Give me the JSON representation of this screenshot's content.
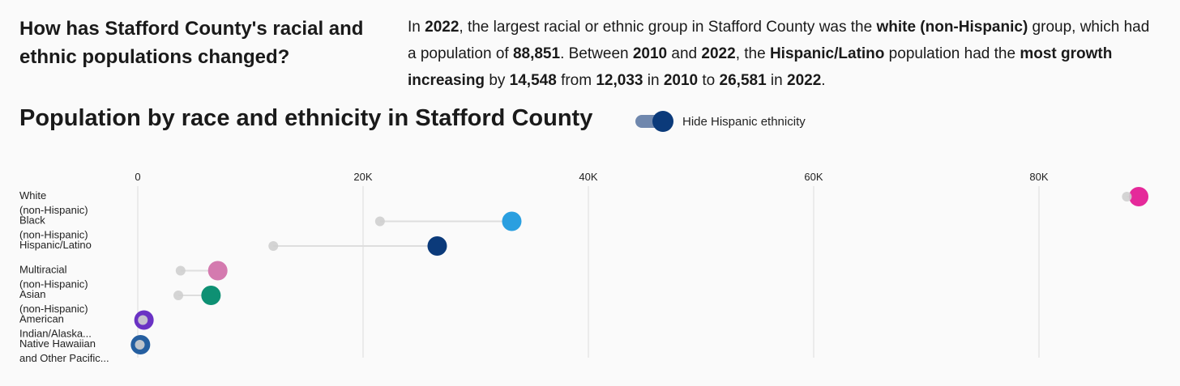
{
  "intro": {
    "question": "How has Stafford County's racial and ethnic populations changed?",
    "summary": [
      {
        "t": "In "
      },
      {
        "t": "2022",
        "b": true
      },
      {
        "t": ", the largest racial or ethnic group in Stafford County was the "
      },
      {
        "t": "white (non-Hispanic)",
        "b": true
      },
      {
        "t": " group, which had a population of "
      },
      {
        "t": "88,851",
        "b": true
      },
      {
        "t": ". Between "
      },
      {
        "t": "2010",
        "b": true
      },
      {
        "t": " and "
      },
      {
        "t": "2022",
        "b": true
      },
      {
        "t": ", the "
      },
      {
        "t": "Hispanic/Latino",
        "b": true
      },
      {
        "t": " population had the "
      },
      {
        "t": "most growth increasing",
        "b": true
      },
      {
        "t": " by "
      },
      {
        "t": "14,548",
        "b": true
      },
      {
        "t": " from "
      },
      {
        "t": "12,033",
        "b": true
      },
      {
        "t": " in "
      },
      {
        "t": "2010",
        "b": true
      },
      {
        "t": " to "
      },
      {
        "t": "26,581",
        "b": true
      },
      {
        "t": " in "
      },
      {
        "t": "2022",
        "b": true
      },
      {
        "t": "."
      }
    ]
  },
  "chart_title": "Population by race and ethnicity in Stafford County",
  "toggle": {
    "label": "Hide Hispanic ethnicity",
    "on": true
  },
  "chart_data": {
    "type": "dumbbell",
    "title": "Population by race and ethnicity in Stafford County",
    "xlim": [
      0,
      88851
    ],
    "xticks": [
      0,
      20000,
      40000,
      60000,
      80000
    ],
    "xtick_labels": [
      "0",
      "20K",
      "40K",
      "60K",
      "80K"
    ],
    "grid": true,
    "series_years": [
      "2010",
      "2022"
    ],
    "categories": [
      {
        "label": [
          "White",
          "(non-Hispanic)"
        ],
        "v2010": 87800,
        "v2022": 88851,
        "color": "#e5299a"
      },
      {
        "label": [
          "Black",
          "(non-Hispanic)"
        ],
        "v2010": 21500,
        "v2022": 33200,
        "color": "#2a9fe0"
      },
      {
        "label": [
          "Hispanic/Latino"
        ],
        "v2010": 12033,
        "v2022": 26581,
        "color": "#0b3a7a"
      },
      {
        "label": [
          "Multiracial",
          "(non-Hispanic)"
        ],
        "v2010": 3800,
        "v2022": 7100,
        "color": "#d47aaf"
      },
      {
        "label": [
          "Asian",
          "(non-Hispanic)"
        ],
        "v2010": 3600,
        "v2022": 6500,
        "color": "#0e9073"
      },
      {
        "label": [
          "American",
          "Indian/Alaska..."
        ],
        "v2010": 450,
        "v2022": 550,
        "color": "#6a32c4"
      },
      {
        "label": [
          "Native Hawaiian",
          "and Other Pacific..."
        ],
        "v2010": 180,
        "v2022": 240,
        "color": "#255fa0"
      }
    ]
  }
}
